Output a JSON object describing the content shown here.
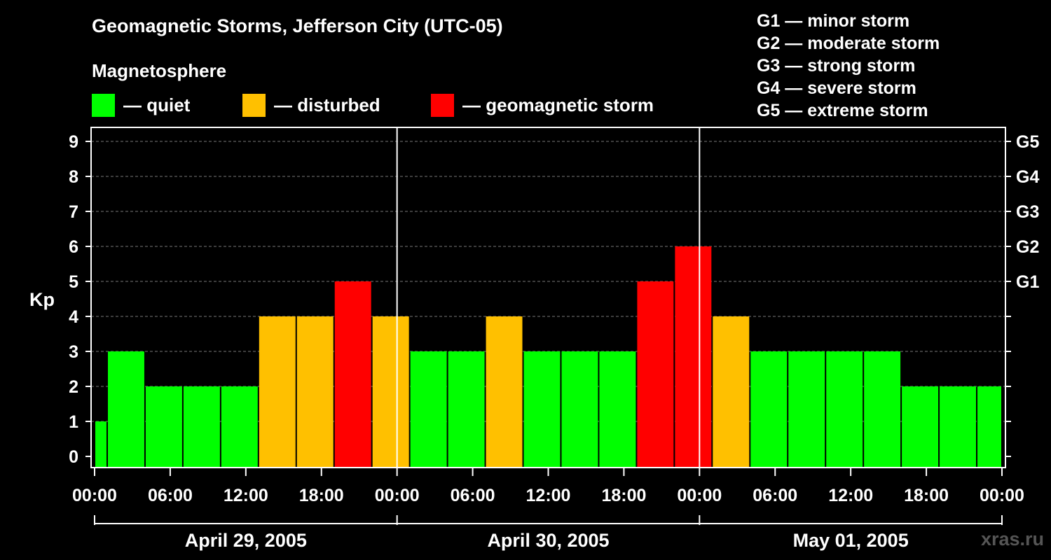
{
  "chart_data": {
    "type": "bar",
    "title": "Geomagnetic Storms, Jefferson City (UTC-05)",
    "subtitle": "Magnetosphere",
    "ylabel": "Kp",
    "ylim": [
      0,
      9
    ],
    "yticks": [
      "0",
      "1",
      "2",
      "3",
      "4",
      "5",
      "6",
      "7",
      "8",
      "9"
    ],
    "right_ticks": [
      {
        "kp": 5,
        "label": "G1"
      },
      {
        "kp": 6,
        "label": "G2"
      },
      {
        "kp": 7,
        "label": "G3"
      },
      {
        "kp": 8,
        "label": "G4"
      },
      {
        "kp": 9,
        "label": "G5"
      }
    ],
    "x_start": "2005-04-29 00:00",
    "x_end": "2005-05-02 00:00",
    "xticks": [
      "00:00",
      "06:00",
      "12:00",
      "18:00",
      "00:00",
      "06:00",
      "12:00",
      "18:00",
      "00:00",
      "06:00",
      "12:00",
      "18:00",
      "00:00"
    ],
    "days": [
      "April 29, 2005",
      "April 30, 2005",
      "May 01, 2005"
    ],
    "legend": [
      {
        "label": "— quiet",
        "color": "#00ff00"
      },
      {
        "label": "— disturbed",
        "color": "#ffc000"
      },
      {
        "label": "— geomagnetic storm",
        "color": "#ff0000"
      }
    ],
    "storm_scale": [
      "G1 — minor storm",
      "G2 — moderate storm",
      "G3 — strong storm",
      "G4 — severe storm",
      "G5 — extreme storm"
    ],
    "grid": true,
    "colors": {
      "quiet": "#00ff00",
      "disturbed": "#ffc000",
      "storm": "#ff0000"
    },
    "bars": [
      {
        "start": "2005-04-29 00:00",
        "end": "2005-04-29 01:00",
        "kp": 1,
        "level": "quiet"
      },
      {
        "start": "2005-04-29 01:00",
        "end": "2005-04-29 04:00",
        "kp": 3,
        "level": "quiet"
      },
      {
        "start": "2005-04-29 04:00",
        "end": "2005-04-29 07:00",
        "kp": 2,
        "level": "quiet"
      },
      {
        "start": "2005-04-29 07:00",
        "end": "2005-04-29 10:00",
        "kp": 2,
        "level": "quiet"
      },
      {
        "start": "2005-04-29 10:00",
        "end": "2005-04-29 13:00",
        "kp": 2,
        "level": "quiet"
      },
      {
        "start": "2005-04-29 13:00",
        "end": "2005-04-29 16:00",
        "kp": 4,
        "level": "disturbed"
      },
      {
        "start": "2005-04-29 16:00",
        "end": "2005-04-29 19:00",
        "kp": 4,
        "level": "disturbed"
      },
      {
        "start": "2005-04-29 19:00",
        "end": "2005-04-29 22:00",
        "kp": 5,
        "level": "storm"
      },
      {
        "start": "2005-04-29 22:00",
        "end": "2005-04-30 01:00",
        "kp": 4,
        "level": "disturbed"
      },
      {
        "start": "2005-04-30 01:00",
        "end": "2005-04-30 04:00",
        "kp": 3,
        "level": "quiet"
      },
      {
        "start": "2005-04-30 04:00",
        "end": "2005-04-30 07:00",
        "kp": 3,
        "level": "quiet"
      },
      {
        "start": "2005-04-30 07:00",
        "end": "2005-04-30 10:00",
        "kp": 4,
        "level": "disturbed"
      },
      {
        "start": "2005-04-30 10:00",
        "end": "2005-04-30 13:00",
        "kp": 3,
        "level": "quiet"
      },
      {
        "start": "2005-04-30 13:00",
        "end": "2005-04-30 16:00",
        "kp": 3,
        "level": "quiet"
      },
      {
        "start": "2005-04-30 16:00",
        "end": "2005-04-30 19:00",
        "kp": 3,
        "level": "quiet"
      },
      {
        "start": "2005-04-30 19:00",
        "end": "2005-04-30 22:00",
        "kp": 5,
        "level": "storm"
      },
      {
        "start": "2005-04-30 22:00",
        "end": "2005-05-01 01:00",
        "kp": 6,
        "level": "storm"
      },
      {
        "start": "2005-05-01 01:00",
        "end": "2005-05-01 04:00",
        "kp": 4,
        "level": "disturbed"
      },
      {
        "start": "2005-05-01 04:00",
        "end": "2005-05-01 07:00",
        "kp": 3,
        "level": "quiet"
      },
      {
        "start": "2005-05-01 07:00",
        "end": "2005-05-01 10:00",
        "kp": 3,
        "level": "quiet"
      },
      {
        "start": "2005-05-01 10:00",
        "end": "2005-05-01 13:00",
        "kp": 3,
        "level": "quiet"
      },
      {
        "start": "2005-05-01 13:00",
        "end": "2005-05-01 16:00",
        "kp": 3,
        "level": "quiet"
      },
      {
        "start": "2005-05-01 16:00",
        "end": "2005-05-01 19:00",
        "kp": 2,
        "level": "quiet"
      },
      {
        "start": "2005-05-01 19:00",
        "end": "2005-05-01 22:00",
        "kp": 2,
        "level": "quiet"
      },
      {
        "start": "2005-05-01 22:00",
        "end": "2005-05-02 00:00",
        "kp": 2,
        "level": "quiet"
      }
    ]
  },
  "watermark": "xras.ru"
}
